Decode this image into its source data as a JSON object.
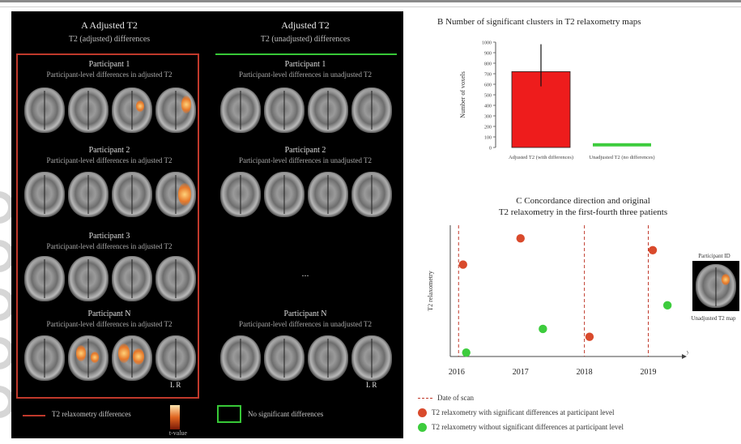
{
  "panel_a": {
    "left_title": "A  Adjusted T2",
    "left_subtitle": "T2 (adjusted) differences",
    "right_title": "Adjusted T2",
    "right_subtitle": "T2 (unadjusted) differences",
    "left_rows": [
      {
        "label": "Participant 1",
        "sublabel": "Participant-level differences in adjusted T2"
      },
      {
        "label": "Participant 2",
        "sublabel": "Participant-level differences in adjusted T2"
      },
      {
        "label": "Participant 3",
        "sublabel": "Participant-level differences in adjusted T2"
      },
      {
        "label": "Participant N",
        "sublabel": "Participant-level differences in adjusted T2"
      }
    ],
    "right_rows": [
      {
        "label": "Participant 1",
        "sublabel": "Participant-level differences in unadjusted T2"
      },
      {
        "label": "Participant 2",
        "sublabel": "Participant-level differences in unadjusted T2"
      },
      {
        "label": "Participant N",
        "sublabel": "Participant-level differences in unadjusted T2"
      }
    ],
    "ellipsis": "...",
    "corner_label_left": "L   R",
    "corner_label_right": "L   R",
    "legend_left": "T2 relaxometry differences",
    "legend_right": "No significant differences",
    "colorbar_label": "t-value"
  },
  "panel_b": {
    "title": "B  Number of significant clusters in T2 relaxometry maps",
    "ylabel": "Number of voxels"
  },
  "panel_c": {
    "title_line1": "C  Concordance direction and original",
    "title_line2": "T2 relaxometry in the first-fourth three patients",
    "ylabel": "T2 relaxometry",
    "xunit": "year",
    "legend_dashed": "Date of scan",
    "legend_red": "T2 relaxometry with significant differences at participant level",
    "legend_green": "T2 relaxometry without significant differences at participant level",
    "inset_top": "Participant ID",
    "inset_bottom": "Unadjusted T2 map"
  },
  "chart_data": [
    {
      "type": "bar",
      "title": "B  Number of significant clusters in T2 relaxometry maps",
      "categories": [
        "Adjusted T2 (with differences)",
        "Unadjusted T2 (no differences)"
      ],
      "values": [
        720,
        25
      ],
      "error_high": [
        980,
        null
      ],
      "error_low": [
        580,
        null
      ],
      "colors": [
        "#ee1c1c",
        "#3dcc3d"
      ],
      "ylim": [
        0,
        1000
      ],
      "yticks": [
        0,
        100,
        200,
        300,
        400,
        500,
        600,
        700,
        800,
        900,
        1000
      ],
      "xlabel": "",
      "ylabel": "Number of voxels"
    },
    {
      "type": "scatter",
      "title": "C  Concordance direction and original T2 relaxometry in the first-fourth three patients",
      "xlabel": "",
      "ylabel": "T2 relaxometry",
      "xticks": [
        "2016",
        "2017",
        "2018",
        "2019"
      ],
      "xlim": [
        2015.9,
        2019.45
      ],
      "ylim": [
        0,
        100
      ],
      "dashed_x": [
        2016.03,
        2018.0,
        2019.0
      ],
      "series": [
        {
          "name": "T2 relaxometry with significant differences at participant level",
          "color": "#d94a2c",
          "points": [
            [
              2016.1,
              70
            ],
            [
              2017.0,
              90
            ],
            [
              2018.08,
              15
            ],
            [
              2019.07,
              81
            ]
          ]
        },
        {
          "name": "T2 relaxometry without significant differences at participant level",
          "color": "#3dcc3d",
          "points": [
            [
              2016.15,
              3
            ],
            [
              2017.35,
              21
            ],
            [
              2019.3,
              39
            ]
          ]
        }
      ]
    }
  ]
}
